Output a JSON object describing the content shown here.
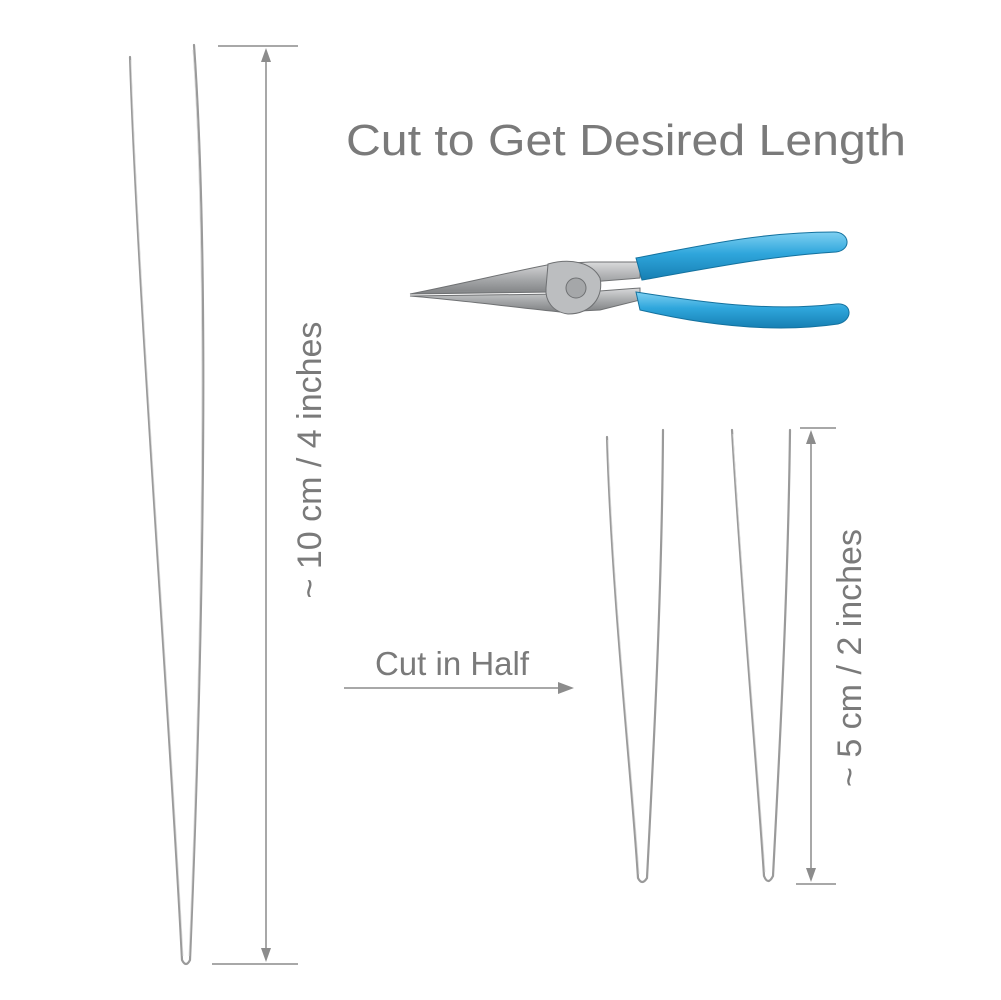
{
  "heading": "Cut to Get Desired Length",
  "long_needle": {
    "dimension_label": "~ 10 cm / 4 inches",
    "length_cm": 10,
    "length_in": 4
  },
  "cut_step": {
    "label": "Cut in Half"
  },
  "short_needles": {
    "count": 2,
    "dimension_label": "~ 5 cm / 2 inches",
    "length_cm": 5,
    "length_in": 2
  },
  "tool": {
    "icon": "pliers-icon",
    "handle_color": "#2fa6dc",
    "metal_color": "#a9abad"
  },
  "colors": {
    "text": "#7a7a7a",
    "dimension_line": "#8c8c8c",
    "wire": "#9a9a9a"
  }
}
